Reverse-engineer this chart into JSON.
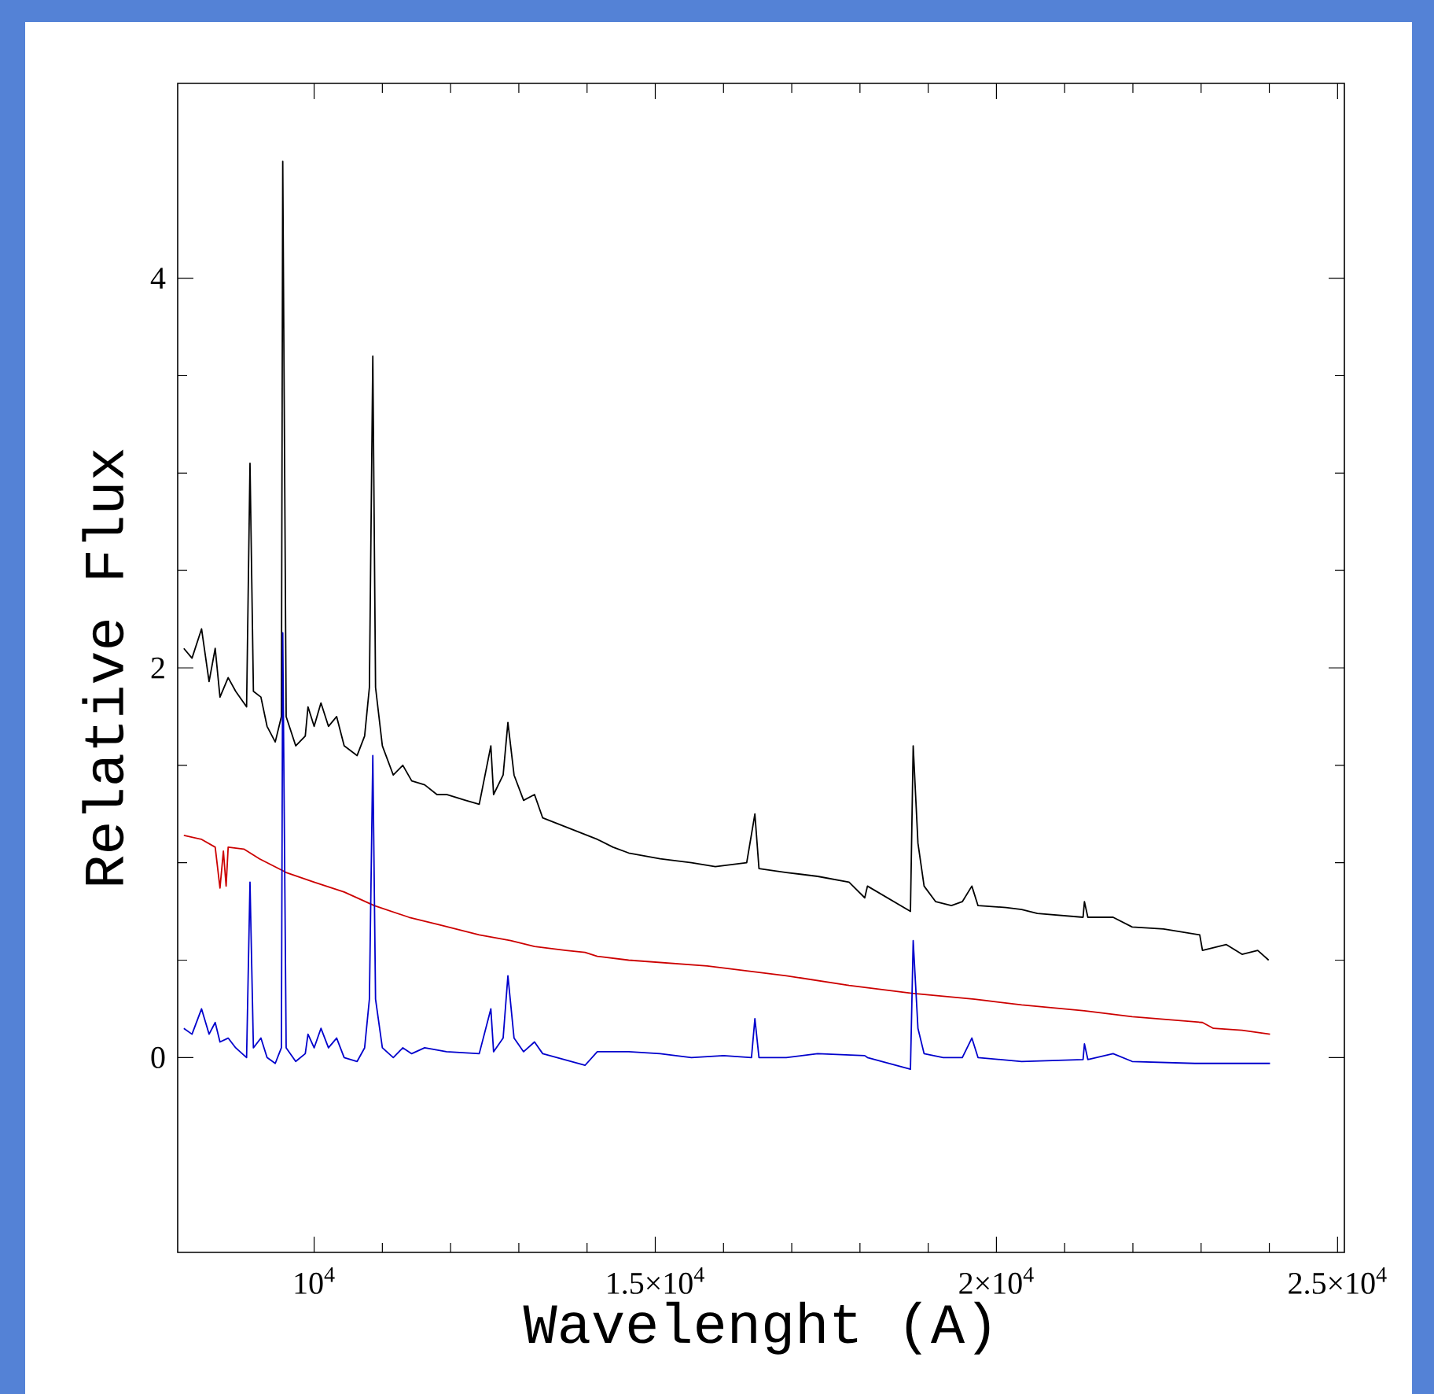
{
  "chart_data": {
    "type": "line",
    "xlabel": "Wavelenght (A)",
    "ylabel": "Relative Flux",
    "xlim": [
      8000,
      25100
    ],
    "ylim": [
      -1,
      5
    ],
    "xticks": [
      {
        "value": 10000,
        "label": "10$^{4}$"
      },
      {
        "value": 15000,
        "label": "1.5×10$^{4}$"
      },
      {
        "value": 20000,
        "label": "2×10$^{4}$"
      },
      {
        "value": 25000,
        "label": "2.5×10$^{4}$"
      }
    ],
    "yticks": [
      0,
      2,
      4
    ],
    "series": [
      {
        "color": "#000000",
        "x": [
          8090,
          8210,
          8350,
          8460,
          8550,
          8620,
          8740,
          8850,
          9010,
          9060,
          9110,
          9220,
          9310,
          9430,
          9520,
          9540,
          9590,
          9730,
          9870,
          9910,
          10000,
          10100,
          10210,
          10330,
          10440,
          10630,
          10740,
          10810,
          10860,
          10900,
          11000,
          11160,
          11300,
          11430,
          11620,
          11800,
          11940,
          12220,
          12420,
          12590,
          12630,
          12770,
          12840,
          12930,
          13070,
          13230,
          13350,
          14150,
          14380,
          14610,
          15070,
          15530,
          15880,
          16340,
          16460,
          16520,
          16920,
          17380,
          17840,
          18070,
          18110,
          18740,
          18780,
          18850,
          18940,
          19110,
          19340,
          19500,
          19640,
          19730,
          20140,
          20370,
          20600,
          21270,
          21290,
          21340,
          21710,
          21990,
          22450,
          22980,
          23020,
          23370,
          23600,
          23830,
          23990
        ],
        "values": [
          2.1,
          2.05,
          2.2,
          1.93,
          2.1,
          1.85,
          1.95,
          1.88,
          1.8,
          3.05,
          1.88,
          1.85,
          1.7,
          1.62,
          1.75,
          4.6,
          1.75,
          1.6,
          1.65,
          1.8,
          1.7,
          1.82,
          1.7,
          1.75,
          1.6,
          1.55,
          1.65,
          1.9,
          3.6,
          1.9,
          1.6,
          1.45,
          1.5,
          1.42,
          1.4,
          1.35,
          1.35,
          1.32,
          1.3,
          1.6,
          1.35,
          1.45,
          1.72,
          1.45,
          1.32,
          1.35,
          1.23,
          1.12,
          1.08,
          1.05,
          1.02,
          1.0,
          0.98,
          1.0,
          1.25,
          0.97,
          0.95,
          0.93,
          0.9,
          0.82,
          0.88,
          0.75,
          1.6,
          1.1,
          0.88,
          0.8,
          0.78,
          0.8,
          0.88,
          0.78,
          0.77,
          0.76,
          0.74,
          0.72,
          0.8,
          0.72,
          0.72,
          0.67,
          0.66,
          0.63,
          0.55,
          0.58,
          0.53,
          0.55,
          0.5
        ]
      },
      {
        "color": "#cc0000",
        "x": [
          8090,
          8350,
          8550,
          8620,
          8670,
          8710,
          8740,
          8970,
          9200,
          9590,
          10000,
          10440,
          10880,
          11390,
          11850,
          12420,
          12880,
          13230,
          13690,
          13970,
          14150,
          14610,
          15760,
          16920,
          17840,
          18760,
          19680,
          20370,
          21290,
          21990,
          23020,
          23180,
          23600,
          24010
        ],
        "values": [
          1.14,
          1.12,
          1.08,
          0.87,
          1.06,
          0.88,
          1.08,
          1.07,
          1.02,
          0.95,
          0.9,
          0.85,
          0.78,
          0.72,
          0.68,
          0.63,
          0.6,
          0.57,
          0.55,
          0.54,
          0.52,
          0.5,
          0.47,
          0.42,
          0.37,
          0.33,
          0.3,
          0.27,
          0.24,
          0.21,
          0.18,
          0.15,
          0.14,
          0.12
        ]
      },
      {
        "color": "#0000cc",
        "x": [
          8090,
          8210,
          8350,
          8460,
          8550,
          8620,
          8740,
          8850,
          9010,
          9060,
          9110,
          9220,
          9310,
          9430,
          9520,
          9540,
          9590,
          9730,
          9870,
          9910,
          10000,
          10100,
          10210,
          10330,
          10440,
          10630,
          10740,
          10810,
          10860,
          10900,
          11000,
          11160,
          11300,
          11430,
          11620,
          11940,
          12420,
          12590,
          12630,
          12770,
          12840,
          12930,
          13070,
          13230,
          13350,
          13970,
          14150,
          14610,
          15070,
          15530,
          16000,
          16410,
          16460,
          16520,
          16920,
          17380,
          18070,
          18110,
          18740,
          18780,
          18850,
          18940,
          19220,
          19500,
          19640,
          19730,
          20370,
          21270,
          21290,
          21340,
          21710,
          21990,
          22910,
          24010
        ],
        "values": [
          0.15,
          0.12,
          0.25,
          0.12,
          0.18,
          0.08,
          0.1,
          0.05,
          0.0,
          0.9,
          0.05,
          0.1,
          0.0,
          -0.03,
          0.05,
          2.18,
          0.05,
          -0.02,
          0.02,
          0.12,
          0.05,
          0.15,
          0.05,
          0.1,
          0.0,
          -0.02,
          0.05,
          0.3,
          1.55,
          0.3,
          0.05,
          0.0,
          0.05,
          0.02,
          0.05,
          0.03,
          0.02,
          0.25,
          0.03,
          0.1,
          0.42,
          0.1,
          0.03,
          0.08,
          0.02,
          -0.04,
          0.03,
          0.03,
          0.02,
          0.0,
          0.01,
          0.0,
          0.2,
          0.0,
          0.0,
          0.02,
          0.01,
          0.0,
          -0.06,
          0.6,
          0.15,
          0.02,
          0.0,
          0.0,
          0.1,
          0.0,
          -0.02,
          -0.01,
          0.07,
          -0.01,
          0.02,
          -0.02,
          -0.03,
          -0.03
        ]
      }
    ]
  }
}
